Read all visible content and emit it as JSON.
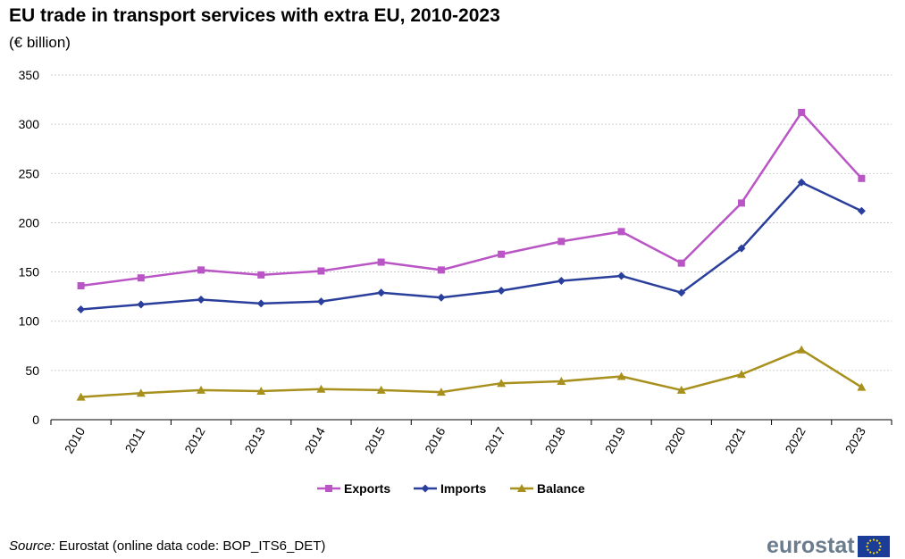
{
  "title": "EU trade in transport services with extra EU, 2010-2023",
  "subtitle": "(€ billion)",
  "source": {
    "label": "Source:",
    "text": " Eurostat (online data code: BOP_ITS6_DET)"
  },
  "logo": {
    "text": "eurostat",
    "flag_icon": "eu-flag-icon"
  },
  "colors": {
    "exports": "#b955c4",
    "imports": "#2a3f9c",
    "balance": "#a8901c",
    "grid": "#bfbfbf"
  },
  "chart_data": {
    "type": "line",
    "categories": [
      "2010",
      "2011",
      "2012",
      "2013",
      "2014",
      "2015",
      "2016",
      "2017",
      "2018",
      "2019",
      "2020",
      "2021",
      "2022",
      "2023"
    ],
    "series": [
      {
        "name": "Exports",
        "marker": "square",
        "color": "#b955c4",
        "values": [
          136,
          144,
          152,
          147,
          151,
          160,
          152,
          168,
          181,
          191,
          159,
          220,
          312,
          245
        ]
      },
      {
        "name": "Imports",
        "marker": "diamond",
        "color": "#2a3f9c",
        "values": [
          112,
          117,
          122,
          118,
          120,
          129,
          124,
          131,
          141,
          146,
          129,
          174,
          241,
          212
        ]
      },
      {
        "name": "Balance",
        "marker": "triangle",
        "color": "#a8901c",
        "values": [
          23,
          27,
          30,
          29,
          31,
          30,
          28,
          37,
          39,
          44,
          30,
          46,
          71,
          33
        ]
      }
    ],
    "ylim": [
      0,
      350
    ],
    "yticks": [
      "0",
      "50",
      "100",
      "150",
      "200",
      "250",
      "300",
      "350"
    ],
    "grid": true,
    "legend_position": "bottom"
  }
}
